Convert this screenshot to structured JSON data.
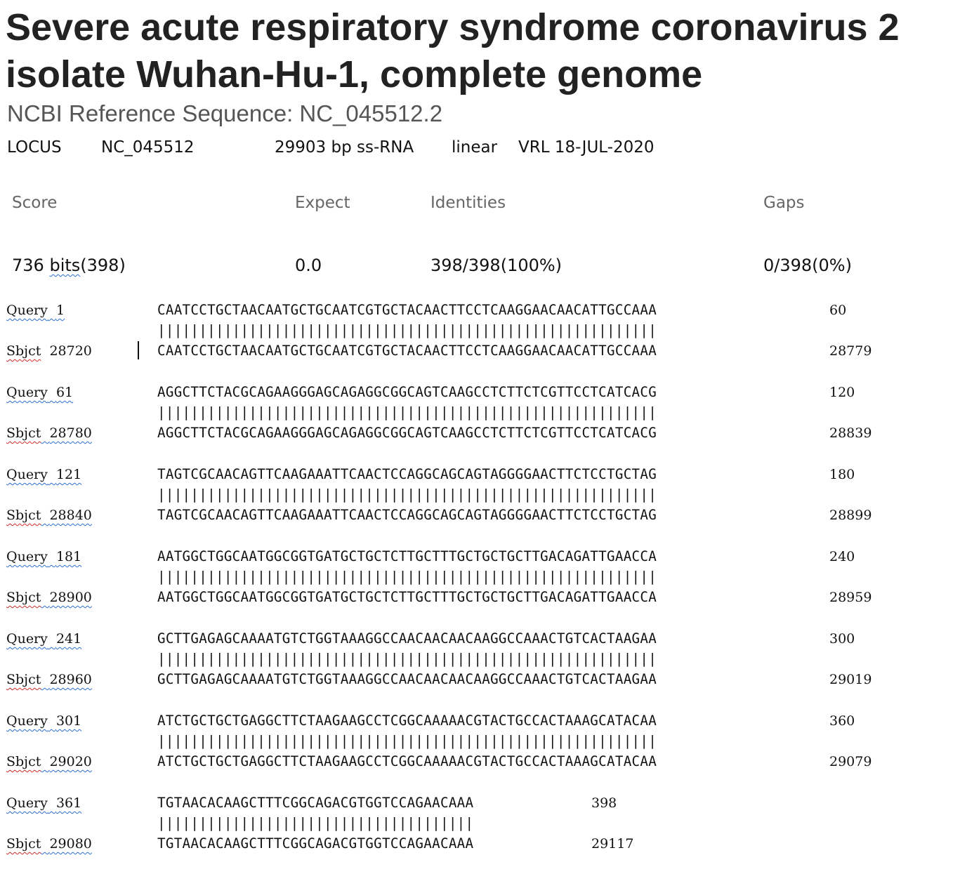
{
  "header": {
    "title": "Severe acute respiratory syndrome coronavirus 2 isolate Wuhan-Hu-1, complete genome",
    "reference": "NCBI Reference Sequence: NC_045512.2"
  },
  "locus": {
    "label": "LOCUS",
    "accession": "NC_045512",
    "length": "29903 bp ss-RNA",
    "topology": "linear",
    "division_date": "VRL 18-JUL-2020"
  },
  "stats": {
    "headers": {
      "score": "Score",
      "expect": "Expect",
      "identities": "Identities",
      "gaps": "Gaps"
    },
    "score_num": "736",
    "score_unit": "bits",
    "score_paren": "(398)",
    "expect": "0.0",
    "identities": "398/398(100%)",
    "gaps": "0/398(0%)"
  },
  "alignment": {
    "query_label": "Query",
    "sbjct_label": "Sbjct",
    "blocks": [
      {
        "q_start": "1",
        "q_seq": "CAATCCTGCTAACAATGCTGCAATCGTGCTACAACTTCCTCAAGGAACAACATTGCCAAA",
        "q_end": "60",
        "match": "||||||||||||||||||||||||||||||||||||||||||||||||||||||||||||",
        "s_start": "28720",
        "s_seq": "CAATCCTGCTAACAATGCTGCAATCGTGCTACAACTTCCTCAAGGAACAACATTGCCAAA",
        "s_end": "28779"
      },
      {
        "q_start": "61",
        "q_seq": "AGGCTTCTACGCAGAAGGGAGCAGAGGCGGCAGTCAAGCCTCTTCTCGTTCCTCATCACG",
        "q_end": "120",
        "match": "||||||||||||||||||||||||||||||||||||||||||||||||||||||||||||",
        "s_start": "28780",
        "s_seq": "AGGCTTCTACGCAGAAGGGAGCAGAGGCGGCAGTCAAGCCTCTTCTCGTTCCTCATCACG",
        "s_end": "28839"
      },
      {
        "q_start": "121",
        "q_seq": "TAGTCGCAACAGTTCAAGAAATTCAACTCCAGGCAGCAGTAGGGGAACTTCTCCTGCTAG",
        "q_end": "180",
        "match": "||||||||||||||||||||||||||||||||||||||||||||||||||||||||||||",
        "s_start": "28840",
        "s_seq": "TAGTCGCAACAGTTCAAGAAATTCAACTCCAGGCAGCAGTAGGGGAACTTCTCCTGCTAG",
        "s_end": "28899"
      },
      {
        "q_start": "181",
        "q_seq": "AATGGCTGGCAATGGCGGTGATGCTGCTCTTGCTTTGCTGCTGCTTGACAGATTGAACCA",
        "q_end": "240",
        "match": "||||||||||||||||||||||||||||||||||||||||||||||||||||||||||||",
        "s_start": "28900",
        "s_seq": "AATGGCTGGCAATGGCGGTGATGCTGCTCTTGCTTTGCTGCTGCTTGACAGATTGAACCA",
        "s_end": "28959"
      },
      {
        "q_start": "241",
        "q_seq": "GCTTGAGAGCAAAATGTCTGGTAAAGGCCAACAACAACAAGGCCAAACTGTCACTAAGAA",
        "q_end": "300",
        "match": "||||||||||||||||||||||||||||||||||||||||||||||||||||||||||||",
        "s_start": "28960",
        "s_seq": "GCTTGAGAGCAAAATGTCTGGTAAAGGCCAACAACAACAAGGCCAAACTGTCACTAAGAA",
        "s_end": "29019"
      },
      {
        "q_start": "301",
        "q_seq": "ATCTGCTGCTGAGGCTTCTAAGAAGCCTCGGCAAAAACGTACTGCCACTAAAGCATACAA",
        "q_end": "360",
        "match": "||||||||||||||||||||||||||||||||||||||||||||||||||||||||||||",
        "s_start": "29020",
        "s_seq": "ATCTGCTGCTGAGGCTTCTAAGAAGCCTCGGCAAAAACGTACTGCCACTAAAGCATACAA",
        "s_end": "29079"
      },
      {
        "q_start": "361",
        "q_seq": "TGTAACACAAGCTTTCGGCAGACGTGGTCCAGAACAAA",
        "q_end": "398",
        "match": "||||||||||||||||||||||||||||||||||||||",
        "s_start": "29080",
        "s_seq": "TGTAACACAAGCTTTCGGCAGACGTGGTCCAGAACAAA",
        "s_end": "29117"
      }
    ]
  }
}
